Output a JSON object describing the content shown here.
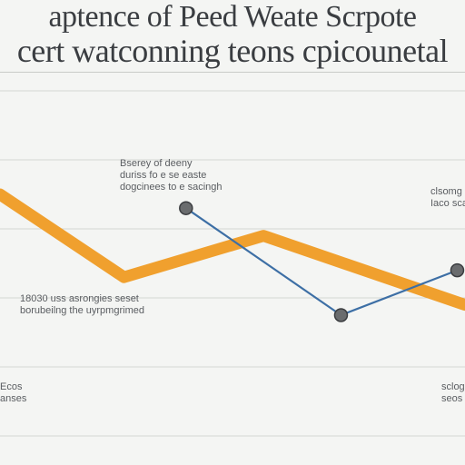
{
  "title": {
    "line1": "aptence of Peed Weate Scrpote",
    "line2": "cert watconning teons cpicounetal"
  },
  "annotations": [
    {
      "id": "top-center",
      "text": "Bserey of deeny\nduriss fo e se easte\ndogcinees to e sacingh"
    },
    {
      "id": "mid-left",
      "text": "18030 uss asrongies seset\nborubeilng the uyrpmgrimed"
    },
    {
      "id": "right-top",
      "text": "clsomg\nIaco sca"
    },
    {
      "id": "bottom-left",
      "text": "Ecos\nanses"
    },
    {
      "id": "bottom-right",
      "text": "sclog\nseos"
    }
  ],
  "colors": {
    "orange": "#f0a02e",
    "blue": "#3d6fa5",
    "grid": "#d4d6d3",
    "marker": "#6a6c6e"
  },
  "chart_data": {
    "type": "line",
    "x": [
      0,
      1,
      2,
      3,
      4,
      5,
      6
    ],
    "xlim": [
      0,
      6
    ],
    "ylim": [
      0,
      10
    ],
    "grid": true,
    "series": [
      {
        "color": "#f0a02e",
        "style": "thick",
        "x": [
          0,
          1.6,
          3.4,
          6
        ],
        "y": [
          7.0,
          4.6,
          5.8,
          3.8
        ]
      },
      {
        "color": "#3d6fa5",
        "style": "thin-markers",
        "x": [
          2.4,
          4.4,
          5.9
        ],
        "y": [
          6.6,
          3.5,
          4.8
        ]
      }
    ]
  }
}
